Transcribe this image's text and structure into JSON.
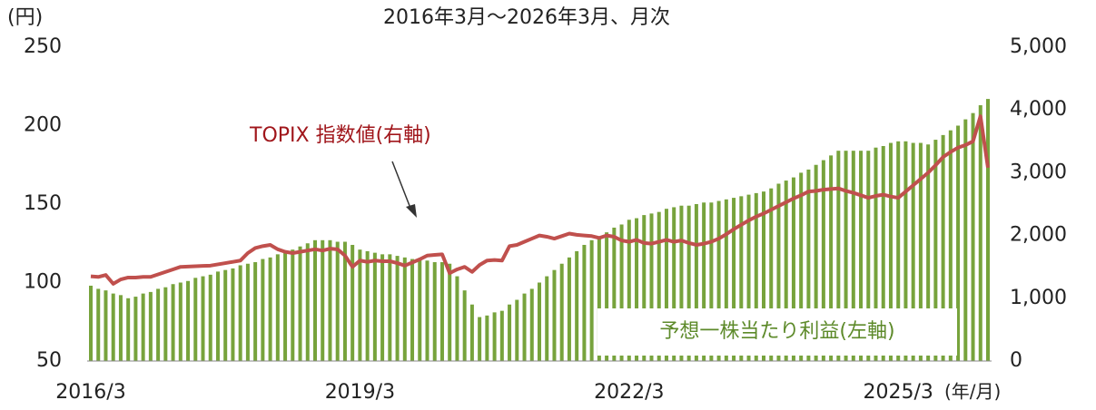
{
  "chart_data": {
    "type": "bar_line",
    "title": "2016年3月～2026年3月、月次",
    "y_label": "(円)",
    "x_label": "(年/月)",
    "annotations": [
      "TOPIX 指数値(右軸)",
      "予想一株当たり利益(左軸)"
    ],
    "categories": [
      "2016/3",
      null,
      null,
      null,
      null,
      null,
      null,
      null,
      null,
      null,
      null,
      null,
      null,
      null,
      null,
      null,
      null,
      null,
      null,
      null,
      null,
      null,
      null,
      null,
      null,
      null,
      null,
      null,
      null,
      null,
      null,
      null,
      null,
      null,
      null,
      null,
      "2019/3",
      null,
      null,
      null,
      null,
      null,
      null,
      null,
      null,
      null,
      null,
      null,
      null,
      null,
      null,
      null,
      null,
      null,
      null,
      null,
      null,
      null,
      null,
      null,
      null,
      null,
      null,
      null,
      null,
      null,
      null,
      null,
      null,
      null,
      null,
      null,
      "2022/3",
      null,
      null,
      null,
      null,
      null,
      null,
      null,
      null,
      null,
      null,
      null,
      null,
      null,
      null,
      null,
      null,
      null,
      null,
      null,
      null,
      null,
      null,
      null,
      null,
      null,
      null,
      null,
      null,
      null,
      null,
      null,
      null,
      null,
      null,
      null,
      "2025/3",
      null,
      null,
      null,
      null,
      null,
      null,
      null,
      null,
      null,
      null,
      null,
      null
    ],
    "series": [
      {
        "name": "予想一株当たり利益",
        "type": "bar",
        "axis": "y",
        "color": "#77a33c",
        "values": [
          98,
          96,
          95,
          93,
          92,
          90,
          91,
          93,
          94,
          96,
          97,
          99,
          100,
          101,
          103,
          104,
          105,
          107,
          108,
          109,
          111,
          112,
          113,
          115,
          116,
          118,
          120,
          121,
          123,
          125,
          127,
          127,
          127,
          126,
          126,
          124,
          121,
          120,
          119,
          118,
          118,
          117,
          116,
          115,
          115,
          114,
          113,
          113,
          112,
          104,
          95,
          86,
          78,
          79,
          81,
          82,
          86,
          89,
          93,
          96,
          100,
          104,
          108,
          112,
          116,
          120,
          124,
          127,
          129,
          132,
          135,
          137,
          140,
          141,
          143,
          144,
          145,
          147,
          148,
          149,
          149,
          150,
          151,
          151,
          152,
          153,
          154,
          155,
          156,
          157,
          158,
          160,
          163,
          165,
          167,
          170,
          172,
          175,
          178,
          181,
          184,
          184,
          184,
          184,
          184,
          186,
          187,
          189,
          190,
          190,
          189,
          189,
          188,
          191,
          194,
          197,
          200,
          204,
          208,
          213,
          217
        ]
      },
      {
        "name": "TOPIX",
        "type": "line",
        "axis": "y2",
        "color": "#c0504d",
        "values": [
          1350,
          1340,
          1370,
          1230,
          1300,
          1330,
          1330,
          1340,
          1340,
          1380,
          1420,
          1460,
          1500,
          1505,
          1510,
          1515,
          1520,
          1540,
          1560,
          1580,
          1600,
          1720,
          1800,
          1830,
          1850,
          1780,
          1740,
          1720,
          1740,
          1760,
          1780,
          1760,
          1790,
          1780,
          1680,
          1500,
          1600,
          1580,
          1600,
          1590,
          1590,
          1560,
          1520,
          1570,
          1620,
          1680,
          1690,
          1700,
          1400,
          1460,
          1500,
          1420,
          1530,
          1600,
          1610,
          1600,
          1830,
          1850,
          1900,
          1950,
          2000,
          1980,
          1950,
          1990,
          2030,
          2010,
          2000,
          1990,
          1960,
          2000,
          1980,
          1920,
          1900,
          1930,
          1880,
          1870,
          1900,
          1930,
          1900,
          1920,
          1880,
          1850,
          1870,
          1900,
          1950,
          2020,
          2100,
          2170,
          2240,
          2300,
          2350,
          2410,
          2470,
          2530,
          2590,
          2640,
          2700,
          2710,
          2730,
          2740,
          2750,
          2710,
          2680,
          2640,
          2600,
          2630,
          2650,
          2620,
          2600,
          2700,
          2800,
          2900,
          3000,
          3120,
          3250,
          3330,
          3400,
          3440,
          3500,
          3900,
          3080
        ]
      }
    ],
    "ylim": [
      50,
      250
    ],
    "yticks": [
      50,
      100,
      150,
      200,
      250
    ],
    "y2lim": [
      0,
      5000
    ],
    "y2ticks": [
      0,
      {
        "value": 1000,
        "label": "1,000"
      },
      {
        "value": 2000,
        "label": "2,000"
      },
      {
        "value": 3000,
        "label": "3,000"
      },
      {
        "value": 4000,
        "label": "4,000"
      },
      {
        "value": 5000,
        "label": "5,000"
      }
    ]
  }
}
